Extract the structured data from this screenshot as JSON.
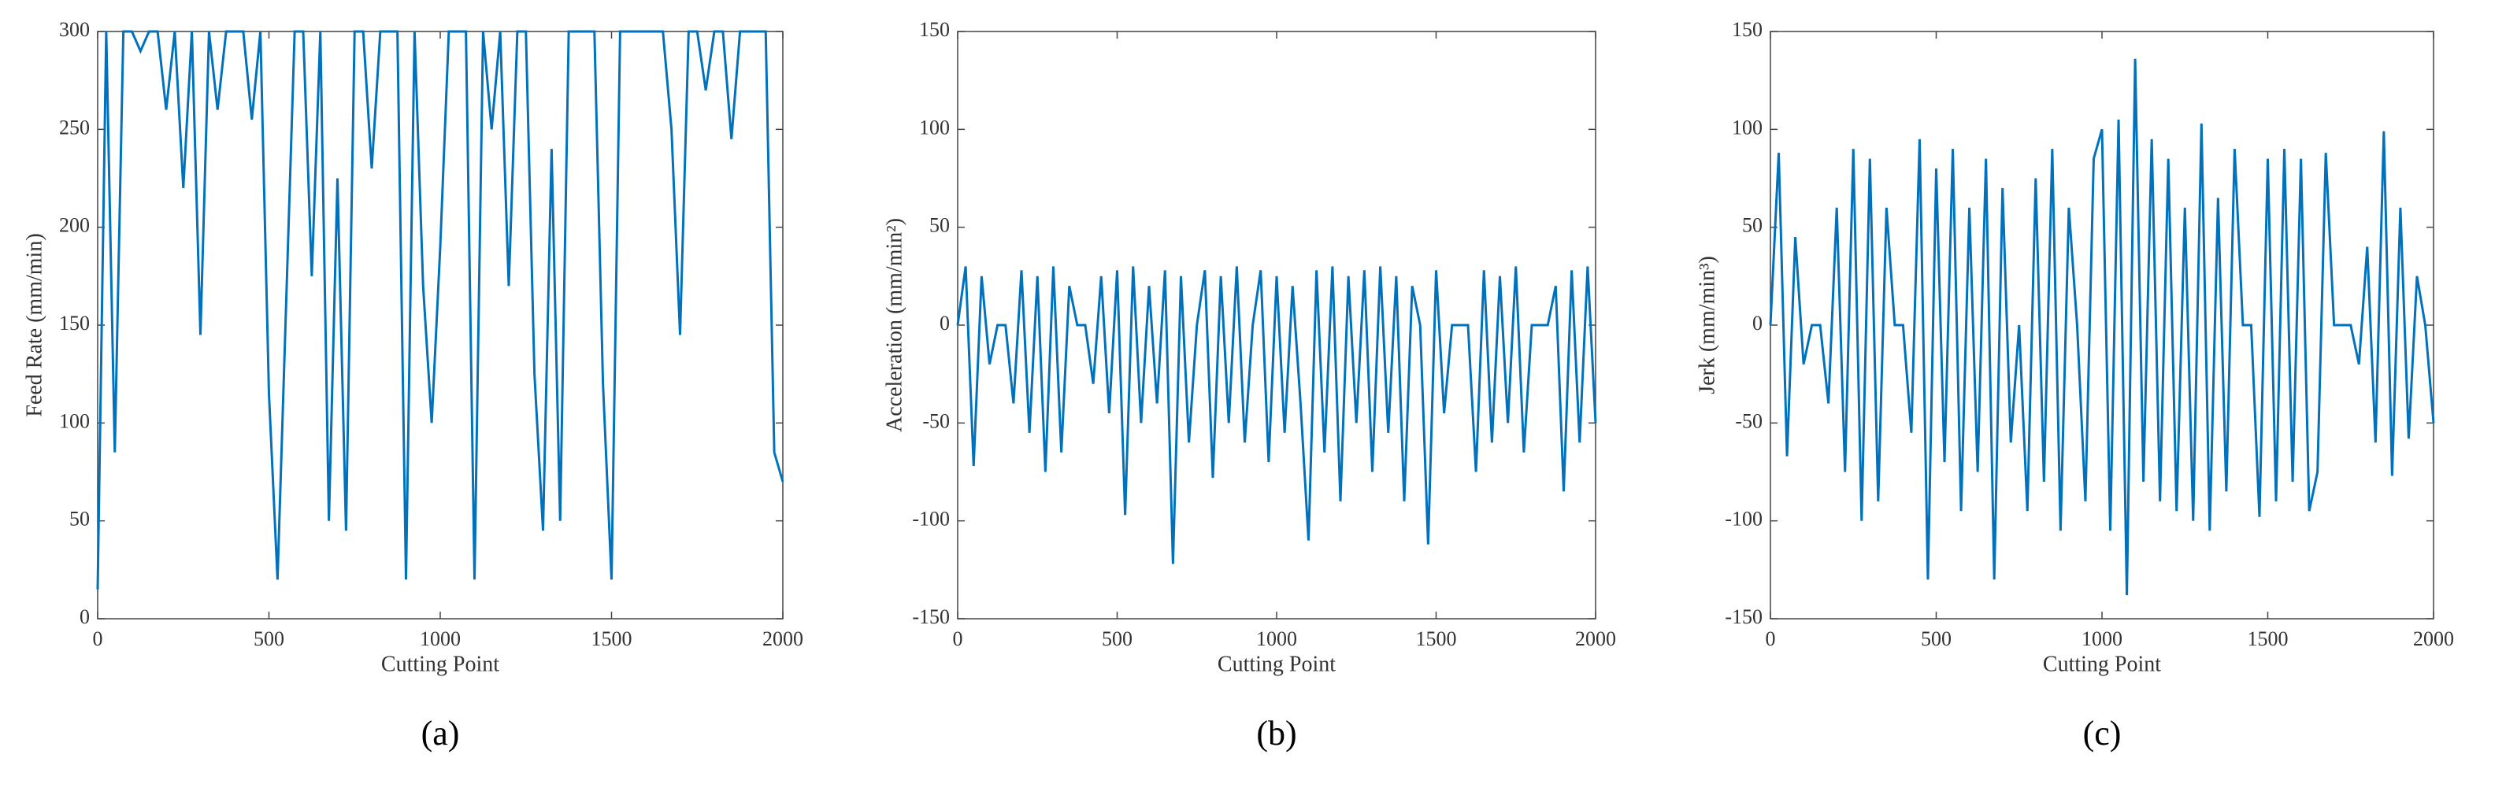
{
  "chart_data": [
    {
      "type": "line",
      "ylabel": "Feed Rate (mm/min)",
      "xlabel": "Cutting Point",
      "label": "(a)",
      "x": [
        0,
        25,
        50,
        75,
        100,
        125,
        150,
        175,
        200,
        225,
        250,
        275,
        300,
        325,
        350,
        375,
        400,
        425,
        450,
        475,
        500,
        525,
        550,
        575,
        600,
        625,
        650,
        675,
        700,
        725,
        750,
        775,
        800,
        825,
        850,
        875,
        900,
        925,
        950,
        975,
        1000,
        1025,
        1050,
        1075,
        1100,
        1125,
        1150,
        1175,
        1200,
        1225,
        1250,
        1275,
        1300,
        1325,
        1350,
        1375,
        1400,
        1425,
        1450,
        1475,
        1500,
        1525,
        1550,
        1575,
        1600,
        1625,
        1650,
        1675,
        1700,
        1725,
        1750,
        1775,
        1800,
        1825,
        1850,
        1875,
        1900,
        1925,
        1950,
        1975,
        2000
      ],
      "series": [
        {
          "color": "#0072bd",
          "values": [
            15,
            300,
            85,
            300,
            300,
            290,
            300,
            300,
            260,
            300,
            220,
            300,
            145,
            300,
            260,
            300,
            300,
            300,
            255,
            300,
            115,
            20,
            160,
            300,
            300,
            175,
            300,
            50,
            225,
            45,
            300,
            300,
            230,
            300,
            300,
            300,
            20,
            300,
            170,
            100,
            190,
            300,
            300,
            300,
            20,
            300,
            250,
            300,
            170,
            300,
            300,
            125,
            45,
            240,
            50,
            300,
            300,
            300,
            300,
            120,
            20,
            300,
            300,
            300,
            300,
            300,
            300,
            250,
            145,
            300,
            300,
            270,
            300,
            300,
            245,
            300,
            300,
            300,
            300,
            85,
            70
          ]
        }
      ],
      "xlim": [
        0,
        2000
      ],
      "xticks": [
        0,
        500,
        1000,
        1500,
        2000
      ],
      "ylim": [
        0,
        300
      ],
      "yticks": [
        0,
        50,
        100,
        150,
        200,
        250,
        300
      ]
    },
    {
      "type": "line",
      "ylabel": "Acceleration (mm/min²)",
      "xlabel": "Cutting Point",
      "label": "(b)",
      "x": [
        0,
        25,
        50,
        75,
        100,
        125,
        150,
        175,
        200,
        225,
        250,
        275,
        300,
        325,
        350,
        375,
        400,
        425,
        450,
        475,
        500,
        525,
        550,
        575,
        600,
        625,
        650,
        675,
        700,
        725,
        750,
        775,
        800,
        825,
        850,
        875,
        900,
        925,
        950,
        975,
        1000,
        1025,
        1050,
        1075,
        1100,
        1125,
        1150,
        1175,
        1200,
        1225,
        1250,
        1275,
        1300,
        1325,
        1350,
        1375,
        1400,
        1425,
        1450,
        1475,
        1500,
        1525,
        1550,
        1575,
        1600,
        1625,
        1650,
        1675,
        1700,
        1725,
        1750,
        1775,
        1800,
        1825,
        1850,
        1875,
        1900,
        1925,
        1950,
        1975,
        2000
      ],
      "series": [
        {
          "color": "#0072bd",
          "values": [
            0,
            30,
            -72,
            25,
            -20,
            0,
            0,
            -40,
            28,
            -55,
            25,
            -75,
            30,
            -65,
            20,
            0,
            0,
            -30,
            25,
            -45,
            28,
            -97,
            30,
            -50,
            20,
            -40,
            28,
            -122,
            25,
            -60,
            0,
            28,
            -78,
            25,
            -50,
            30,
            -60,
            0,
            28,
            -70,
            25,
            -55,
            20,
            -40,
            -110,
            28,
            -65,
            30,
            -90,
            25,
            -50,
            28,
            -75,
            30,
            -55,
            25,
            -90,
            20,
            0,
            -112,
            28,
            -45,
            0,
            0,
            0,
            -75,
            28,
            -60,
            25,
            -50,
            30,
            -65,
            0,
            0,
            0,
            20,
            -85,
            28,
            -60,
            30,
            -50
          ]
        }
      ],
      "xlim": [
        0,
        2000
      ],
      "xticks": [
        0,
        500,
        1000,
        1500,
        2000
      ],
      "ylim": [
        -150,
        150
      ],
      "yticks": [
        -150,
        -100,
        -50,
        0,
        50,
        100,
        150
      ]
    },
    {
      "type": "line",
      "ylabel": "Jerk (mm/min³)",
      "xlabel": "Cutting Point",
      "label": "(c)",
      "x": [
        0,
        25,
        50,
        75,
        100,
        125,
        150,
        175,
        200,
        225,
        250,
        275,
        300,
        325,
        350,
        375,
        400,
        425,
        450,
        475,
        500,
        525,
        550,
        575,
        600,
        625,
        650,
        675,
        700,
        725,
        750,
        775,
        800,
        825,
        850,
        875,
        900,
        925,
        950,
        975,
        1000,
        1025,
        1050,
        1075,
        1100,
        1125,
        1150,
        1175,
        1200,
        1225,
        1250,
        1275,
        1300,
        1325,
        1350,
        1375,
        1400,
        1425,
        1450,
        1475,
        1500,
        1525,
        1550,
        1575,
        1600,
        1625,
        1650,
        1675,
        1700,
        1725,
        1750,
        1775,
        1800,
        1825,
        1850,
        1875,
        1900,
        1925,
        1950,
        1975,
        2000
      ],
      "series": [
        {
          "color": "#0072bd",
          "values": [
            0,
            88,
            -67,
            45,
            -20,
            0,
            0,
            -40,
            60,
            -75,
            90,
            -100,
            85,
            -90,
            60,
            0,
            0,
            -55,
            95,
            -130,
            80,
            -70,
            90,
            -95,
            60,
            -75,
            85,
            -130,
            70,
            -60,
            0,
            -95,
            75,
            -80,
            90,
            -105,
            60,
            0,
            -90,
            85,
            100,
            -105,
            105,
            -138,
            136,
            -80,
            95,
            -90,
            85,
            -95,
            60,
            -100,
            103,
            -105,
            65,
            -85,
            90,
            0,
            0,
            -98,
            85,
            -90,
            90,
            -80,
            85,
            -95,
            -75,
            88,
            0,
            0,
            0,
            -20,
            40,
            -60,
            99,
            -77,
            60,
            -58,
            25,
            0,
            -50
          ]
        }
      ],
      "xlim": [
        0,
        2000
      ],
      "xticks": [
        0,
        500,
        1000,
        1500,
        2000
      ],
      "ylim": [
        -150,
        150
      ],
      "yticks": [
        -150,
        -100,
        -50,
        0,
        50,
        100,
        150
      ]
    }
  ]
}
